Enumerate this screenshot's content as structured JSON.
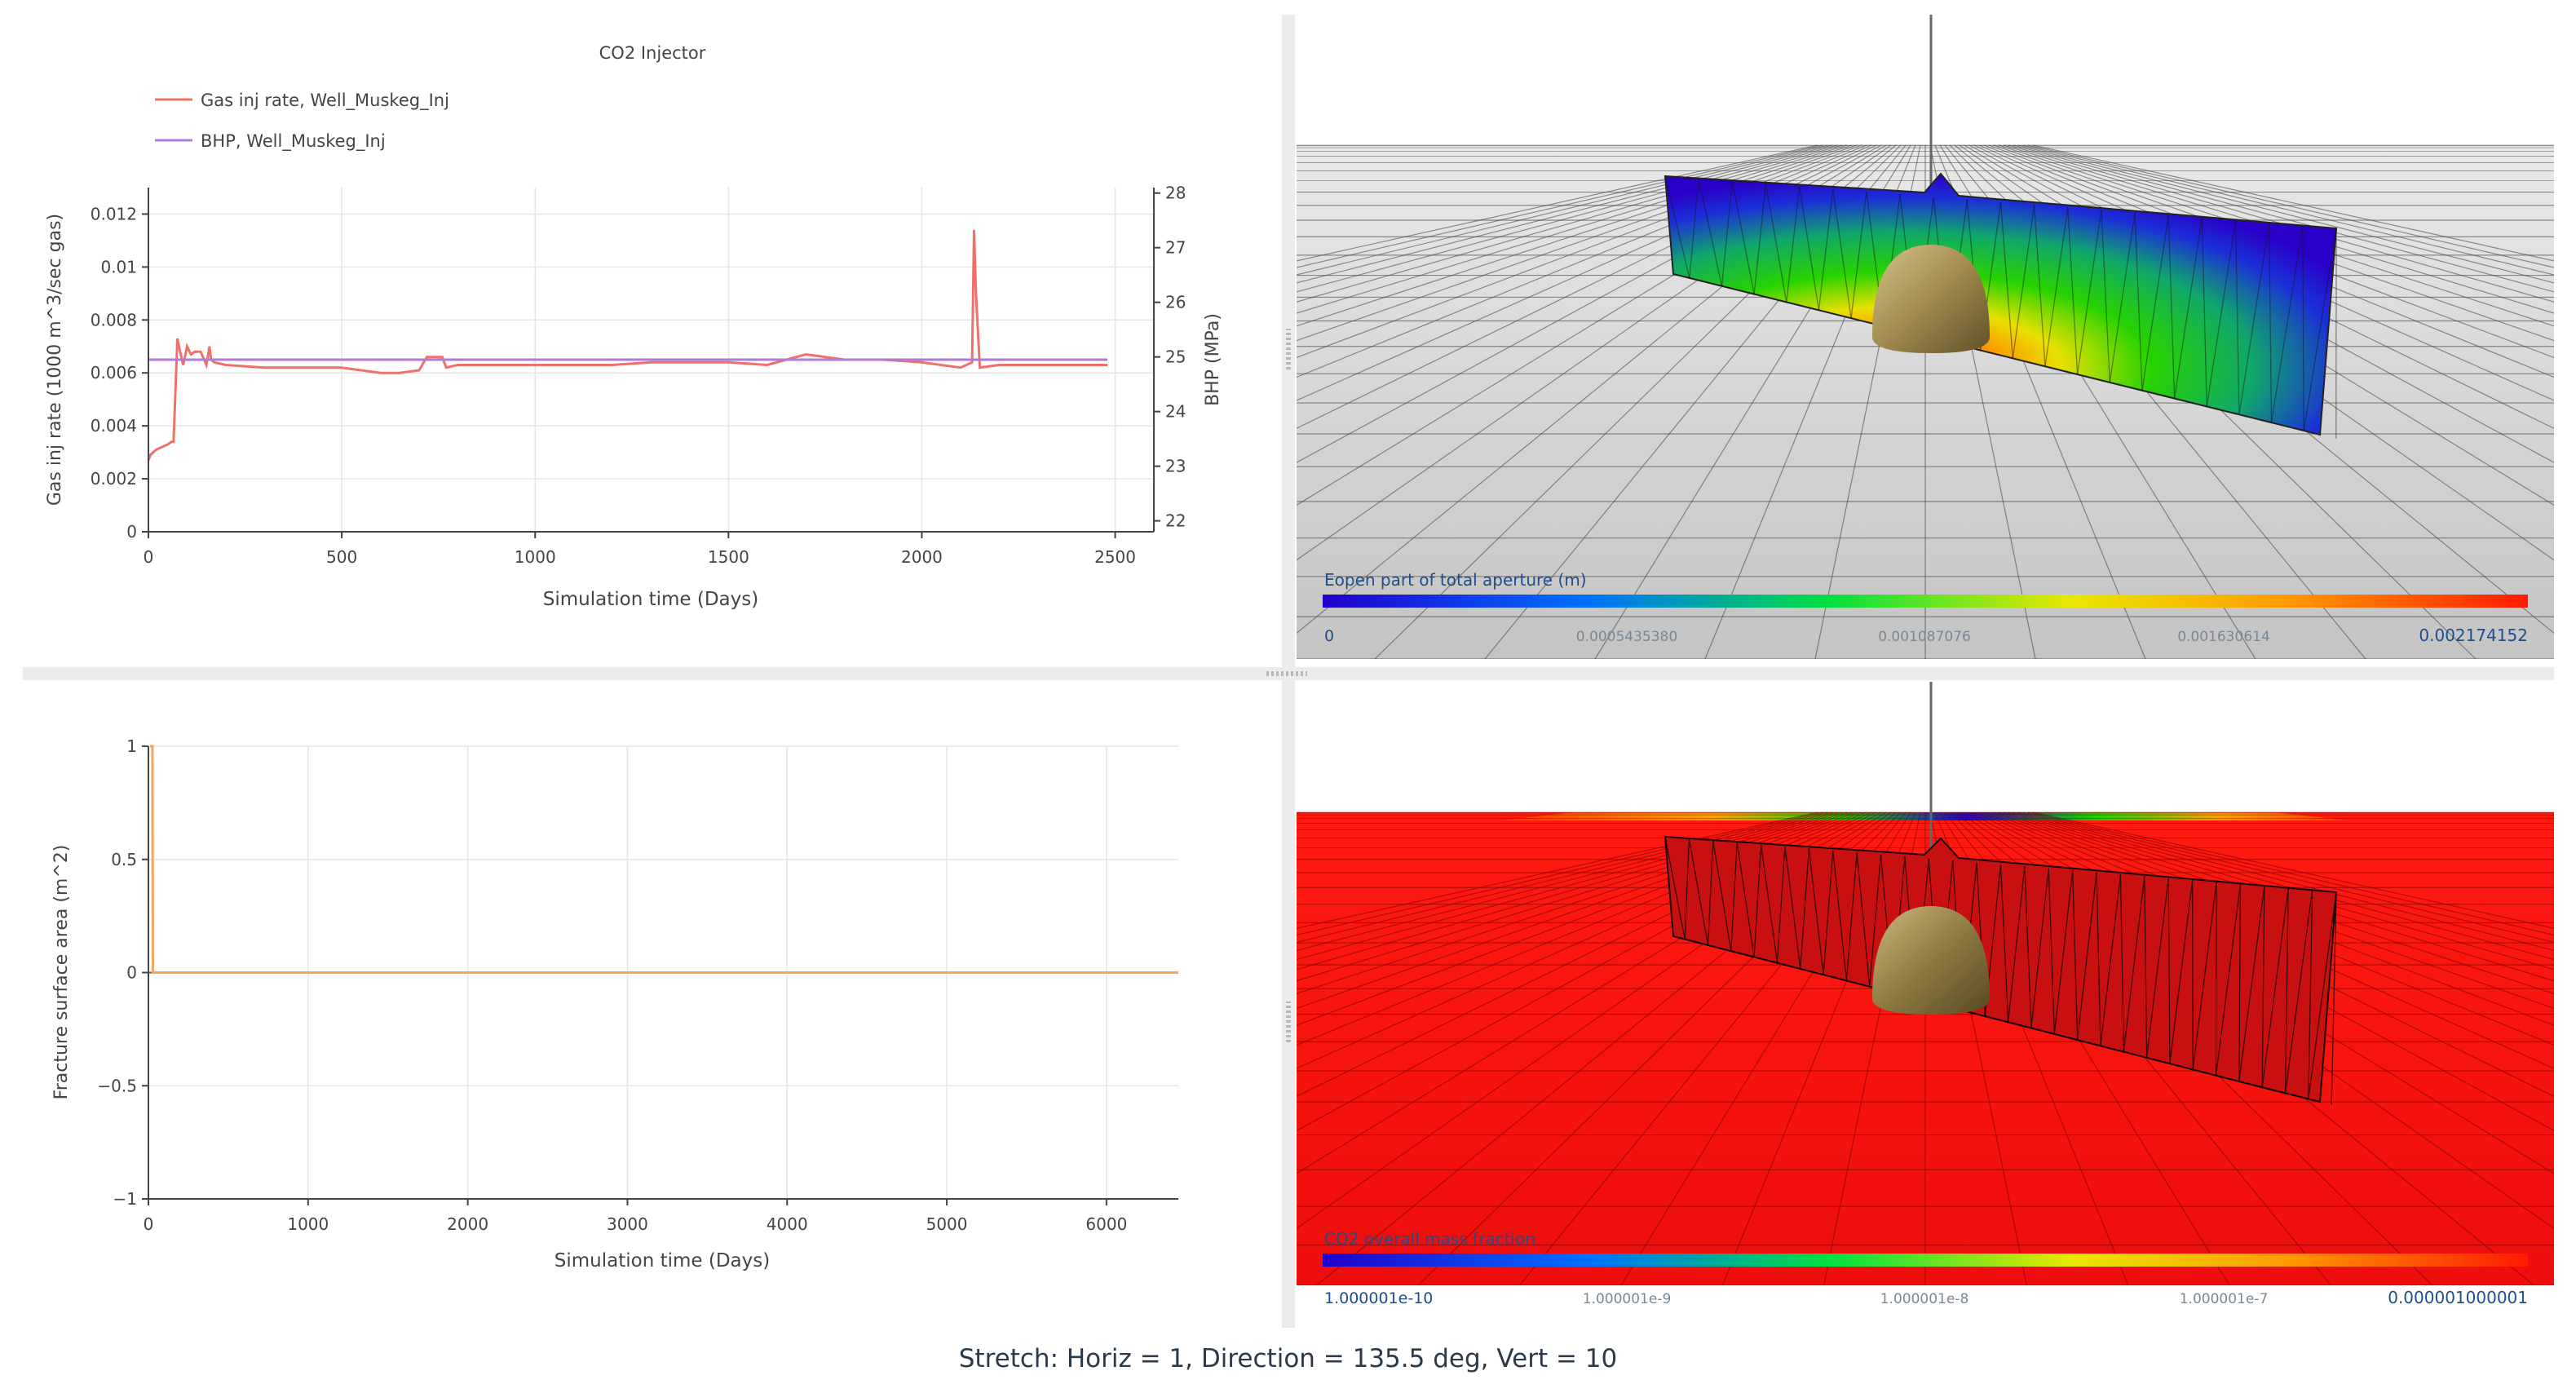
{
  "footer": {
    "stretch_text": "Stretch: Horiz = 1, Direction = 135.5 deg, Vert = 10"
  },
  "colors": {
    "gas_rate": "#f0706a",
    "bhp": "#b07ad9",
    "fracture": "#f5a460",
    "axis": "#444444",
    "grid": "#e6e6e6",
    "colorbar_label": "#1f4e8c"
  },
  "top_view": {
    "colorbar_title": "Eopen part of total aperture (m)",
    "ticks": [
      "0",
      "0.0005435380",
      "0.001087076",
      "0.001630614",
      "0.002174152"
    ]
  },
  "bottom_view": {
    "colorbar_title": "CO2 overall mass fraction",
    "ticks": [
      "1.000001e-10",
      "1.000001e-9",
      "1.000001e-8",
      "1.000001e-7",
      "0.000001000001"
    ]
  },
  "chart_data": [
    {
      "type": "line",
      "title": "CO2 Injector",
      "xlabel": "Simulation time (Days)",
      "ylabel": "Gas inj rate (1000 m^3/sec gas)",
      "y2label": "BHP (MPa)",
      "xlim": [
        0,
        2600
      ],
      "ylim": [
        0,
        0.013
      ],
      "y2lim": [
        21.8,
        28.1
      ],
      "xticks": [
        "0",
        "500",
        "1000",
        "1500",
        "2000",
        "2500"
      ],
      "yticks": [
        "0",
        "0.002",
        "0.004",
        "0.006",
        "0.008",
        "0.01",
        "0.012"
      ],
      "y2ticks": [
        "22",
        "23",
        "24",
        "25",
        "26",
        "27",
        "28"
      ],
      "legend_position": "top-left",
      "grid": true,
      "series": [
        {
          "name": "Gas inj rate, Well_Muskeg_Inj",
          "axis": "y",
          "x": [
            0,
            5,
            20,
            50,
            60,
            65,
            75,
            82,
            90,
            100,
            110,
            120,
            135,
            150,
            158,
            162,
            170,
            200,
            300,
            400,
            500,
            550,
            600,
            650,
            700,
            720,
            740,
            760,
            770,
            800,
            900,
            1000,
            1100,
            1200,
            1300,
            1400,
            1500,
            1600,
            1700,
            1750,
            1800,
            1900,
            2000,
            2050,
            2100,
            2130,
            2135,
            2140,
            2150,
            2200,
            2300,
            2400,
            2480
          ],
          "y": [
            0.0027,
            0.0029,
            0.0031,
            0.0033,
            0.0034,
            0.0034,
            0.0073,
            0.0068,
            0.0063,
            0.007,
            0.0067,
            0.0068,
            0.0068,
            0.0063,
            0.007,
            0.0065,
            0.0064,
            0.0063,
            0.0062,
            0.0062,
            0.0062,
            0.0061,
            0.006,
            0.006,
            0.0061,
            0.0066,
            0.0066,
            0.0066,
            0.0062,
            0.0063,
            0.0063,
            0.0063,
            0.0063,
            0.0063,
            0.0064,
            0.0064,
            0.0064,
            0.0063,
            0.0067,
            0.0066,
            0.0065,
            0.0065,
            0.0064,
            0.0063,
            0.0062,
            0.0064,
            0.0114,
            0.009,
            0.0062,
            0.0063,
            0.0063,
            0.0063,
            0.0063
          ]
        },
        {
          "name": "BHP, Well_Muskeg_Inj",
          "axis": "y2",
          "x": [
            0,
            500,
            1000,
            1500,
            2000,
            2480
          ],
          "y": [
            24.95,
            24.95,
            24.95,
            24.95,
            24.95,
            24.95
          ]
        }
      ]
    },
    {
      "type": "line",
      "title": "",
      "xlabel": "Simulation time (Days)",
      "ylabel": "Fracture surface area (m^2)",
      "xlim": [
        0,
        6450
      ],
      "ylim": [
        -1,
        1
      ],
      "xticks": [
        "0",
        "1000",
        "2000",
        "3000",
        "4000",
        "5000",
        "6000"
      ],
      "yticks": [
        "−1",
        "−0.5",
        "0",
        "0.5",
        "1"
      ],
      "grid": true,
      "series": [
        {
          "x": [
            10,
            25,
            28,
            30,
            6450
          ],
          "y": [
            1,
            1,
            0,
            0,
            0
          ]
        }
      ]
    }
  ]
}
